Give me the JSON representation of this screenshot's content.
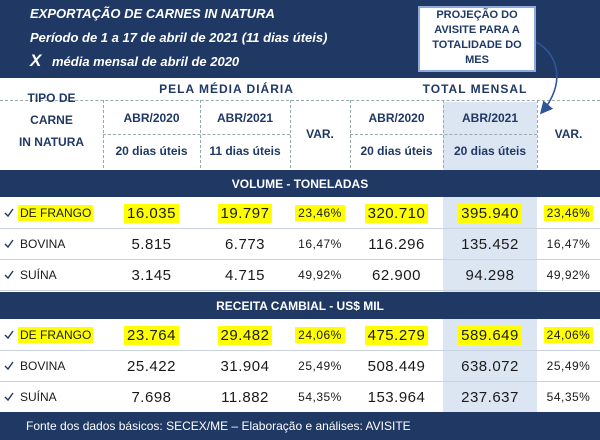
{
  "header": {
    "title": "EXPORTAÇÃO DE CARNES IN NATURA",
    "period": "Período de 1 a 17 de abril de 2021 (11 dias úteis)",
    "comparison_mark": "X",
    "comparison": "média mensal de abril de 2020"
  },
  "callout": {
    "lines": [
      "PROJEÇÃO DO",
      "AVISITE PARA A",
      "TOTALIDADE DO",
      "MES"
    ]
  },
  "table": {
    "type_label": [
      "TIPO DE",
      "CARNE",
      "IN NATURA"
    ],
    "group_daily": "PELA MÉDIA DIÁRIA",
    "group_total": "TOTAL MENSAL",
    "columns": [
      "ABR/2020",
      "ABR/2021",
      "VAR.",
      "ABR/2020",
      "ABR/2021",
      "VAR."
    ],
    "day_counts": [
      "20 dias úteis",
      "11 dias úteis",
      "20 dias úteis",
      "20 dias úteis"
    ],
    "sections": [
      {
        "title": "VOLUME - TONELADAS",
        "rows": [
          {
            "label": "DE FRANGO",
            "highlight": true,
            "values": [
              "16.035",
              "19.797",
              "23,46%",
              "320.710",
              "395.940",
              "23,46%"
            ]
          },
          {
            "label": "BOVINA",
            "highlight": false,
            "values": [
              "5.815",
              "6.773",
              "16,47%",
              "116.296",
              "135.452",
              "16,47%"
            ]
          },
          {
            "label": "SUÍNA",
            "highlight": false,
            "values": [
              "3.145",
              "4.715",
              "49,92%",
              "62.900",
              "94.298",
              "49,92%"
            ]
          }
        ]
      },
      {
        "title": "RECEITA  CAMBIAL - US$ MIL",
        "rows": [
          {
            "label": "DE FRANGO",
            "highlight": true,
            "values": [
              "23.764",
              "29.482",
              "24,06%",
              "475.279",
              "589.649",
              "24,06%"
            ]
          },
          {
            "label": "BOVINA",
            "highlight": false,
            "values": [
              "25.422",
              "31.904",
              "25,49%",
              "508.449",
              "638.072",
              "25,49%"
            ]
          },
          {
            "label": "SUÍNA",
            "highlight": false,
            "values": [
              "7.698",
              "11.882",
              "54,35%",
              "153.964",
              "237.637",
              "54,35%"
            ]
          }
        ]
      }
    ]
  },
  "footer": "Fonte dos dados básicos: SECEX/ME – Elaboração e análises: AVISITE"
}
